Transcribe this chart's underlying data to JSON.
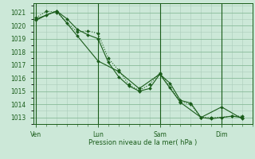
{
  "background_color": "#cce8d8",
  "grid_color_major": "#88bb99",
  "grid_color_minor": "#aaccbb",
  "line_color": "#1a5c1a",
  "marker_color": "#1a5c1a",
  "xlabel": "Pression niveau de la mer( hPa )",
  "ylim": [
    1012.5,
    1021.7
  ],
  "yticks": [
    1013,
    1014,
    1015,
    1016,
    1017,
    1018,
    1019,
    1020,
    1021
  ],
  "day_labels": [
    "Ven",
    "Lun",
    "Sam",
    "Dim"
  ],
  "day_positions": [
    0,
    3,
    6,
    9
  ],
  "xlim": [
    -0.15,
    10.5
  ],
  "series1_x": [
    0,
    0.5,
    1.0,
    1.5,
    2.0,
    2.5,
    3.0,
    3.5,
    4.0,
    4.5,
    5.0,
    5.5,
    6.0,
    6.5,
    7.0,
    7.5,
    8.0,
    8.5,
    9.0,
    9.5,
    10.0
  ],
  "series1_y": [
    1020.4,
    1020.8,
    1021.1,
    1020.5,
    1019.7,
    1019.3,
    1019.0,
    1017.2,
    1016.1,
    1015.4,
    1015.0,
    1015.2,
    1016.3,
    1015.6,
    1014.3,
    1014.1,
    1013.0,
    1012.9,
    1013.0,
    1013.1,
    1013.0
  ],
  "series2_x": [
    0,
    0.5,
    1.0,
    1.5,
    2.0,
    2.5,
    3.0,
    3.5,
    4.0,
    4.5,
    5.0,
    5.5,
    6.0,
    6.5,
    7.0,
    7.5,
    8.0,
    8.5,
    9.0,
    9.5,
    10.0
  ],
  "series2_y": [
    1020.6,
    1021.1,
    1021.0,
    1020.2,
    1019.5,
    1019.6,
    1019.4,
    1017.5,
    1016.6,
    1015.5,
    1015.05,
    1015.5,
    1016.4,
    1015.3,
    1014.2,
    1014.0,
    1013.0,
    1013.0,
    1013.0,
    1013.1,
    1013.1
  ],
  "series3_x": [
    0,
    1,
    2,
    3,
    4,
    5,
    6,
    7,
    8,
    9,
    10
  ],
  "series3_y": [
    1020.5,
    1021.1,
    1019.2,
    1017.3,
    1016.5,
    1015.2,
    1016.3,
    1014.15,
    1013.0,
    1013.8,
    1012.9
  ],
  "tick_fontsize": 5.5,
  "xlabel_fontsize": 6.0,
  "xlabel_color": "#1a5c1a",
  "tick_color": "#1a5c1a"
}
